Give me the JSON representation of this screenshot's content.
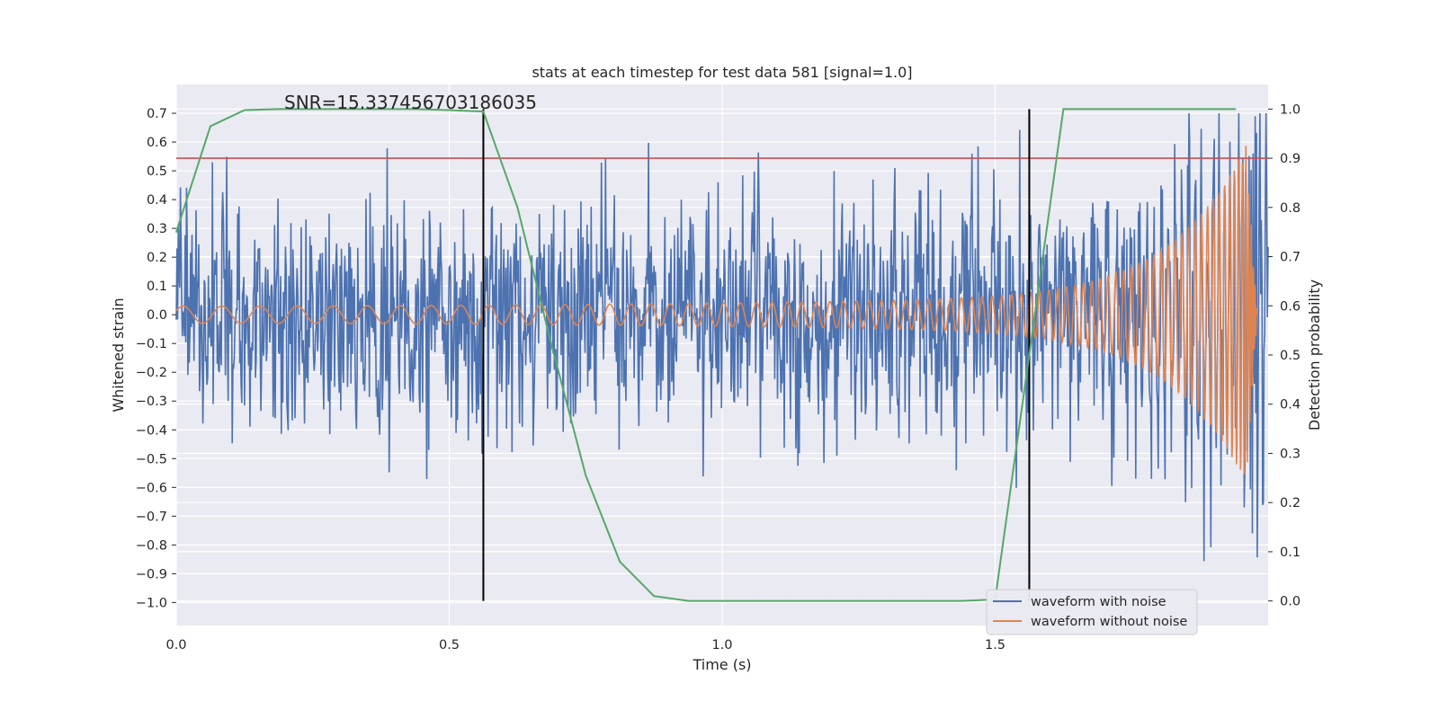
{
  "chart_data": {
    "type": "line",
    "title": "stats at each timestep for test data 581 [signal=1.0]",
    "xlabel": "Time (s)",
    "ylabel_left": "Whitened strain",
    "ylabel_right": "Detection probability",
    "annotation": "SNR=15.337456703186035",
    "xlim": [
      0.0,
      2.0
    ],
    "ylim_left": [
      -1.08,
      0.8
    ],
    "ylim_right": [
      -0.05,
      1.05
    ],
    "x_ticks": [
      "0.0",
      "0.5",
      "1.0",
      "1.5"
    ],
    "x_tick_values": [
      0.0,
      0.5,
      1.0,
      1.5
    ],
    "y_left_ticks": [
      "0.7",
      "0.6",
      "0.5",
      "0.4",
      "0.3",
      "0.2",
      "0.1",
      "0.0",
      "−0.1",
      "−0.2",
      "−0.3",
      "−0.4",
      "−0.5",
      "−0.6",
      "−0.7",
      "−0.8",
      "−0.9",
      "−1.0"
    ],
    "y_left_tick_values": [
      0.7,
      0.6,
      0.5,
      0.4,
      0.3,
      0.2,
      0.1,
      0.0,
      -0.1,
      -0.2,
      -0.3,
      -0.4,
      -0.5,
      -0.6,
      -0.7,
      -0.8,
      -0.9,
      -1.0
    ],
    "y_right_ticks": [
      "1.0",
      "0.9",
      "0.8",
      "0.7",
      "0.6",
      "0.5",
      "0.4",
      "0.3",
      "0.2",
      "0.1",
      "0.0"
    ],
    "y_right_tick_values": [
      1.0,
      0.9,
      0.8,
      0.7,
      0.6,
      0.5,
      0.4,
      0.3,
      0.2,
      0.1,
      0.0
    ],
    "grid": true,
    "legend_position": "bottom-right",
    "series": [
      {
        "name": "waveform with noise",
        "color": "#4c72b0",
        "axis": "left",
        "kind": "noise",
        "x_range": [
          0.0,
          2.0
        ],
        "amplitude_range": [
          -1.0,
          0.7
        ],
        "typical_std": 0.2
      },
      {
        "name": "waveform without noise",
        "color": "#dd8452",
        "axis": "left",
        "kind": "chirp",
        "x_range": [
          0.0,
          1.98
        ],
        "start_amplitude": 0.03,
        "peak_amplitude": 0.55,
        "peak_time": 1.96
      },
      {
        "color": "#55a868",
        "axis": "right",
        "kind": "detection_probability",
        "x": [
          0.0,
          0.0625,
          0.125,
          0.1875,
          0.25,
          0.3125,
          0.375,
          0.4375,
          0.5,
          0.5625,
          0.625,
          0.6875,
          0.75,
          0.8125,
          0.875,
          0.9375,
          1.0,
          1.0625,
          1.125,
          1.1875,
          1.25,
          1.3125,
          1.375,
          1.4375,
          1.5,
          1.5625,
          1.625,
          1.6875,
          1.75,
          1.8125,
          1.875,
          1.94
        ],
        "y": [
          0.75,
          0.965,
          0.998,
          1.0,
          1.0,
          1.0,
          1.0,
          1.0,
          0.998,
          0.995,
          0.8,
          0.52,
          0.255,
          0.08,
          0.01,
          0.0,
          0.0,
          0.0,
          0.0,
          0.0,
          0.0,
          0.0,
          0.0,
          0.0,
          0.003,
          0.5,
          1.0,
          1.0,
          1.0,
          1.0,
          1.0,
          1.0
        ]
      }
    ],
    "threshold_line": {
      "value_right": 0.9,
      "color": "#c44e52"
    },
    "vertical_markers": {
      "x": [
        0.5625,
        1.5625
      ],
      "y_top_right": 1.0,
      "y_bottom_right": 0.0,
      "color": "#000000"
    }
  }
}
